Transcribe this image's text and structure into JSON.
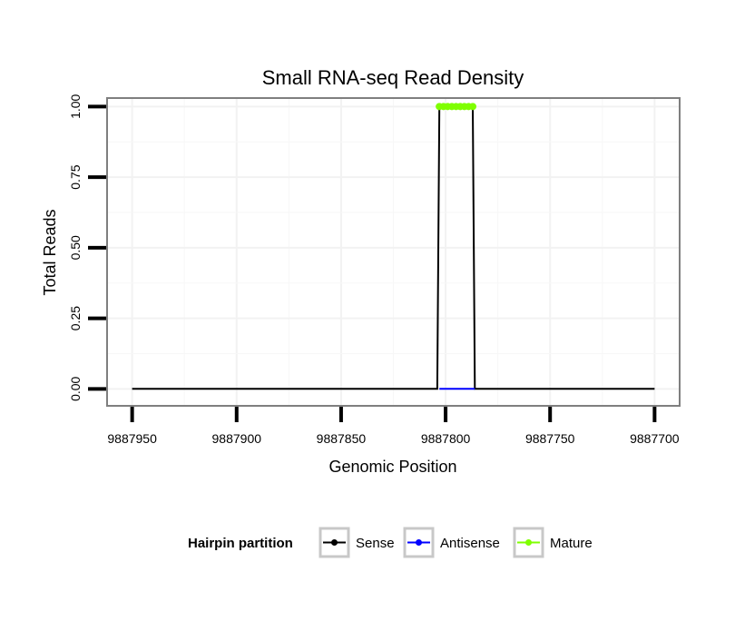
{
  "chart_data": {
    "type": "line",
    "title": "Small RNA-seq Read Density",
    "xlabel": "Genomic Position",
    "ylabel": "Total Reads",
    "x_reversed": true,
    "xlim": [
      9887962,
      9887688
    ],
    "ylim": [
      -0.06,
      1.03
    ],
    "x_ticks": [
      9887950,
      9887900,
      9887850,
      9887800,
      9887750,
      9887700
    ],
    "x_tick_labels": [
      "9887950",
      "9887900",
      "9887850",
      "9887800",
      "9887750",
      "9887700"
    ],
    "y_ticks": [
      0,
      0.25,
      0.5,
      0.75,
      1
    ],
    "y_tick_labels": [
      "0.00",
      "0.25",
      "0.50",
      "0.75",
      "1.00"
    ],
    "grid": true,
    "legend": {
      "title": "Hairpin partition",
      "position": "bottom",
      "entries": [
        {
          "name": "Sense",
          "color": "#000000"
        },
        {
          "name": "Antisense",
          "color": "#0000ff"
        },
        {
          "name": "Mature",
          "color": "#7fff00"
        }
      ]
    },
    "series": [
      {
        "name": "Sense",
        "color": "#000000",
        "x": [
          9887950,
          9887804,
          9887803,
          9887787,
          9887786,
          9887700
        ],
        "y": [
          0,
          0,
          1,
          1,
          0,
          0
        ],
        "points": false
      },
      {
        "name": "Antisense",
        "color": "#0000ff",
        "x": [
          9887803,
          9887786
        ],
        "y": [
          0,
          0
        ],
        "points": false
      },
      {
        "name": "Mature",
        "color": "#7fff00",
        "x": [
          9887803,
          9887801,
          9887799,
          9887797,
          9887795,
          9887793,
          9887791,
          9887789,
          9887787
        ],
        "y": [
          1,
          1,
          1,
          1,
          1,
          1,
          1,
          1,
          1
        ],
        "points": true
      }
    ]
  }
}
